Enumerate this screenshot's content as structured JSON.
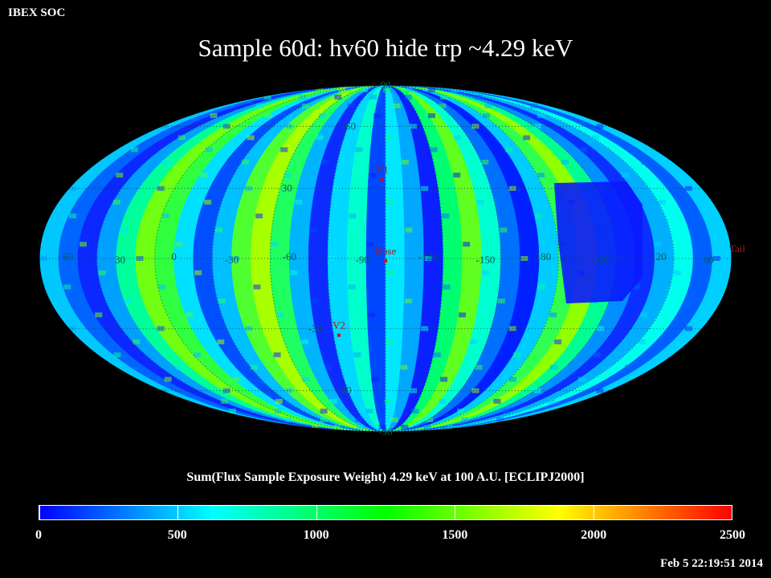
{
  "header": {
    "org": "IBEX SOC",
    "title": "Sample 60d: hv60 hide trp ~4.29 keV"
  },
  "map": {
    "projection": "Mollweide",
    "center_longitude_label": "Nose",
    "lat_labels": [
      "90",
      "60",
      "30",
      "-30",
      "-60",
      "-90"
    ],
    "lon_labels": [
      "60",
      "30",
      "0",
      "-30",
      "-60",
      "-90",
      "-120",
      "-150",
      "180",
      "150",
      "120",
      "90"
    ],
    "markers": [
      {
        "label": "V1",
        "lon": -2,
        "lat": 34
      },
      {
        "label": "Nose",
        "lon": 0,
        "lat": -1
      },
      {
        "label": "V2",
        "lon": -27,
        "lat": -33
      },
      {
        "label": "Tail",
        "lon": 180,
        "lat": 0
      }
    ],
    "region_colors": {
      "low": "#0a1aff",
      "mid_low": "#00aaff",
      "cyan": "#00ffee",
      "mid": "#00ff66",
      "high": "#55ff00",
      "very_high": "#ccff00"
    }
  },
  "colorbar": {
    "title": "Sum(Flux Sample Exposure Weight)  4.29 keV at 100 A.U. [ECLIPJ2000]",
    "min": 0,
    "max": 2500,
    "tick_values": [
      0,
      500,
      1000,
      1500,
      2000,
      2500
    ],
    "tick_labels": [
      "0",
      "500",
      "1000",
      "1500",
      "2000",
      "2500"
    ],
    "stops": [
      "#0000ff",
      "#00ffff",
      "#00ff00",
      "#ffff00",
      "#ff0000"
    ]
  },
  "footer": {
    "timestamp": "Feb  5 22:19:51 2014"
  }
}
